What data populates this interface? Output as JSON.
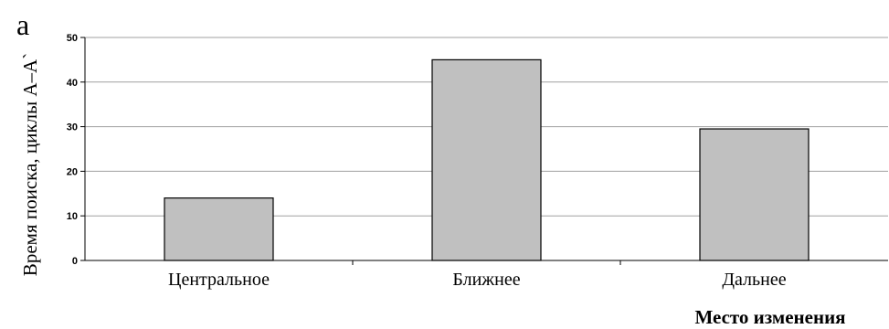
{
  "panel_label": "а",
  "chart_data": {
    "type": "bar",
    "title": "",
    "xlabel": "Место изменения",
    "ylabel": "Время поиска, циклы А–А`",
    "categories": [
      "Центральное",
      "Ближнее",
      "Дальнее"
    ],
    "values": [
      14,
      45,
      29.5
    ],
    "ylim": [
      0,
      50
    ],
    "yticks": [
      0,
      10,
      20,
      30,
      40,
      50
    ],
    "grid": true,
    "bar_color": "#c0c0c0",
    "bar_stroke": "#000000",
    "grid_color": "#a0a0a0"
  }
}
